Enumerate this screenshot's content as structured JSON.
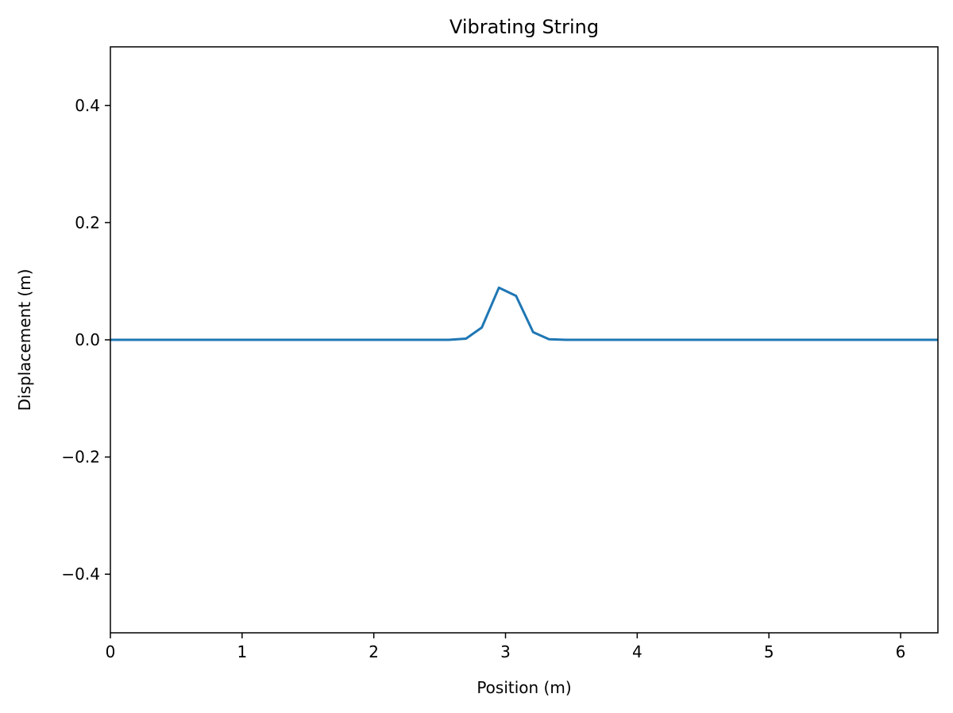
{
  "chart_data": {
    "type": "line",
    "title": "Vibrating String",
    "xlabel": "Position (m)",
    "ylabel": "Displacement (m)",
    "xlim": [
      0,
      6.2832
    ],
    "ylim": [
      -0.5,
      0.5
    ],
    "grid": false,
    "legend": "none",
    "x_ticks": [
      {
        "value": 0,
        "label": "0"
      },
      {
        "value": 1,
        "label": "1"
      },
      {
        "value": 2,
        "label": "2"
      },
      {
        "value": 3,
        "label": "3"
      },
      {
        "value": 4,
        "label": "4"
      },
      {
        "value": 5,
        "label": "5"
      },
      {
        "value": 6,
        "label": "6"
      }
    ],
    "y_ticks": [
      {
        "value": -0.4,
        "label": "−0.4"
      },
      {
        "value": -0.2,
        "label": "−0.2"
      },
      {
        "value": 0.0,
        "label": "0.0"
      },
      {
        "value": 0.2,
        "label": "0.2"
      },
      {
        "value": 0.4,
        "label": "0.4"
      }
    ],
    "series": [
      {
        "color": "#1f77b4",
        "x": [
          0,
          0.5,
          1.0,
          1.5,
          2.0,
          2.4,
          2.57,
          2.7,
          2.82,
          2.95,
          3.08,
          3.21,
          3.33,
          3.46,
          3.6,
          4.0,
          4.5,
          5.0,
          5.5,
          6.0,
          6.2832
        ],
        "y": [
          0,
          0,
          0,
          0,
          0,
          0,
          0.0,
          0.002,
          0.021,
          0.089,
          0.075,
          0.013,
          0.001,
          0.0,
          0,
          0,
          0,
          0,
          0,
          0,
          0
        ]
      }
    ]
  }
}
